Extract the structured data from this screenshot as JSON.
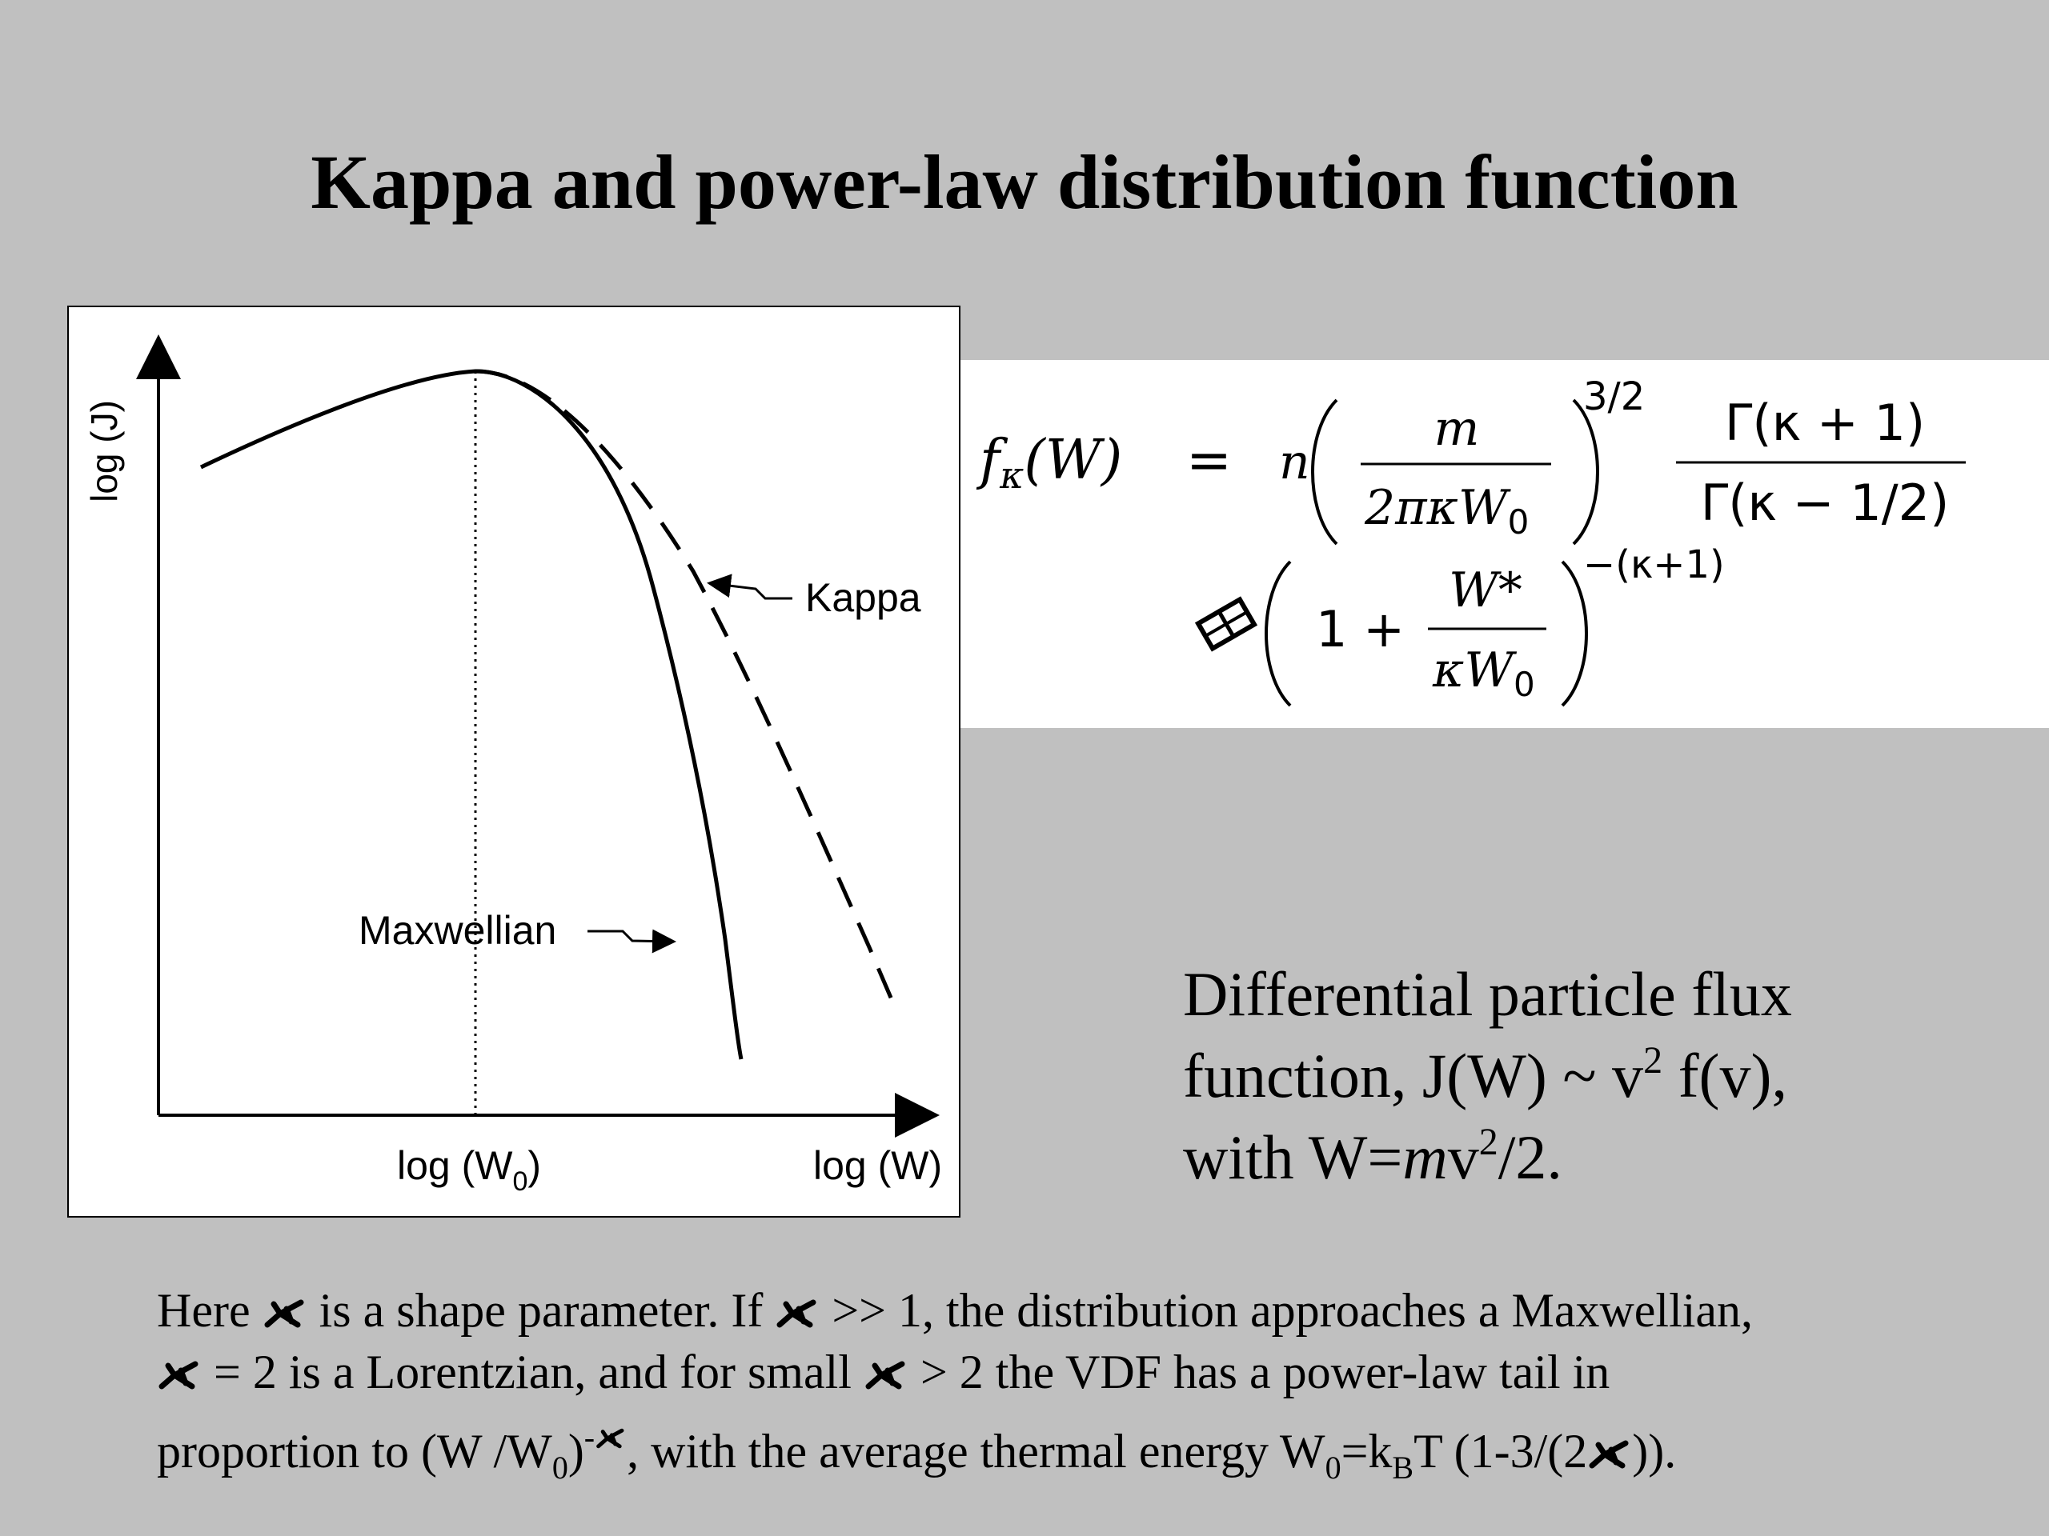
{
  "slide": {
    "title": "Kappa and power-law distribution function",
    "background_color": "#c0c0c0"
  },
  "figure": {
    "y_axis_label": "log (J)",
    "x_tick_label_main": "log (W",
    "x_tick_label_sub": "0",
    "x_tick_label_close": ")",
    "x_axis_label": "log (W)",
    "curve_label_kappa": "Kappa",
    "curve_label_maxwellian": "Maxwellian"
  },
  "formula": {
    "lhs_f": "f",
    "lhs_kappa": "κ",
    "lhs_arg": "(W)",
    "equals": "=",
    "n": "n",
    "frac1_num": "m",
    "frac1_den_main": "2πκW",
    "frac1_den_sub": "0",
    "exp1": "3/2",
    "frac2_num": "Γ(κ + 1)",
    "frac2_den": "Γ(κ − 1/2)",
    "one_plus": "1 +",
    "frac3_num": "W*",
    "frac3_den_main": "κW",
    "frac3_den_sub": "0",
    "exp2": "−(κ+1)"
  },
  "flux_text": {
    "line1": "Differential particle flux",
    "line2_a": "function, J(W)  ~  v",
    "line2_sup": "2",
    "line2_b": " f(v),",
    "line3_a": "with W=",
    "line3_m": "m",
    "line3_b": "v",
    "line3_sup": "2",
    "line3_c": "/2."
  },
  "footnote": {
    "l1_a": "Here ",
    "l1_b": "  is a shape parameter. If ",
    "l1_c": "  >> 1, the distribution approaches a Maxwellian,",
    "l2_a": "  = 2 is a Lorentzian, and for small ",
    "l2_b": "  > 2  the VDF has a power-law tail in",
    "l3_a": "proportion to (W /W",
    "l3_sub0": "0",
    "l3_b": ")",
    "l3_sup": "-",
    "l3_c": ", with the average thermal energy W",
    "l3_sub1": "0",
    "l3_d": "=k",
    "l3_subB": "B",
    "l3_e": "T (1-3/(2",
    "l3_f": "))."
  }
}
